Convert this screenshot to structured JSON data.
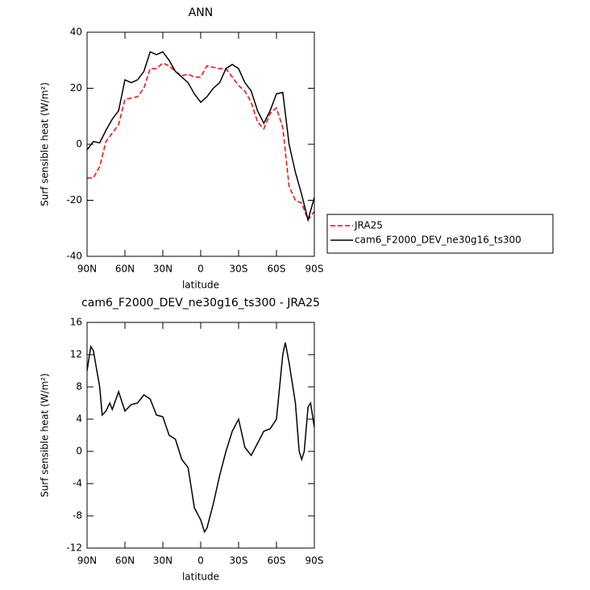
{
  "chart_data": [
    {
      "type": "line",
      "title": "ANN",
      "xlabel": "latitude",
      "ylabel": "Surf sensible heat (W/m²)",
      "x": [
        90,
        85,
        80,
        75,
        70,
        65,
        60,
        55,
        50,
        45,
        40,
        35,
        30,
        25,
        20,
        15,
        10,
        5,
        0,
        -5,
        -10,
        -15,
        -20,
        -25,
        -30,
        -35,
        -40,
        -45,
        -50,
        -55,
        -60,
        -65,
        -70,
        -75,
        -80,
        -85,
        -90
      ],
      "series": [
        {
          "name": "JRA25",
          "color": "#ff0000",
          "style": "dashed",
          "values": [
            -12,
            -12,
            -8,
            1,
            4,
            7,
            16,
            16.5,
            17,
            20,
            27,
            27,
            29,
            28,
            26,
            24.5,
            25,
            24,
            24,
            28,
            27.5,
            27,
            27,
            24,
            21,
            19,
            15,
            8,
            5.5,
            11,
            13,
            6,
            -15,
            -20,
            -21,
            -27,
            -24
          ]
        },
        {
          "name": "cam6_F2000_DEV_ne30g16_ts300",
          "color": "#000000",
          "style": "solid",
          "values": [
            -2,
            1,
            0.5,
            5,
            9,
            12,
            23,
            22,
            23,
            26,
            33,
            32,
            33,
            30,
            26,
            24,
            22,
            18,
            15,
            17,
            20,
            22,
            27,
            28.5,
            27,
            22,
            19,
            12,
            7.5,
            12,
            18,
            18.5,
            0,
            -10,
            -18,
            -27,
            -19
          ]
        }
      ],
      "xlim": [
        90,
        -90
      ],
      "xticks": [
        {
          "value": 90,
          "label": "90N"
        },
        {
          "value": 60,
          "label": "60N"
        },
        {
          "value": 30,
          "label": "30N"
        },
        0,
        {
          "value": -30,
          "label": "30S"
        },
        {
          "value": -60,
          "label": "60S"
        },
        {
          "value": -90,
          "label": "90S"
        }
      ],
      "ylim": [
        -40,
        40
      ],
      "yticks": [
        -40,
        -20,
        0,
        20,
        40
      ],
      "legend": "right"
    },
    {
      "type": "line",
      "title": "cam6_F2000_DEV_ne30g16_ts300 - JRA25",
      "xlabel": "latitude",
      "ylabel": "Surf sensible heat (W/m²)",
      "x": [
        90,
        87,
        85,
        80,
        78,
        75,
        72,
        70,
        65,
        60,
        55,
        50,
        45,
        40,
        35,
        30,
        25,
        20,
        15,
        10,
        5,
        0,
        -3,
        -5,
        -10,
        -15,
        -20,
        -25,
        -30,
        -35,
        -40,
        -45,
        -50,
        -55,
        -60,
        -65,
        -67,
        -70,
        -75,
        -78,
        -80,
        -82,
        -85,
        -87,
        -90
      ],
      "series": [
        {
          "name": "cam6_F2000_DEV_ne30g16_ts300 - JRA25",
          "color": "#000000",
          "style": "solid",
          "values": [
            10,
            13,
            12.5,
            8,
            4.5,
            5,
            6,
            5.2,
            7.4,
            5,
            5.8,
            6,
            7,
            6.5,
            4.5,
            4.3,
            2,
            1.5,
            -1,
            -2,
            -7,
            -8.5,
            -10,
            -9.5,
            -6.5,
            -3,
            0,
            2.5,
            4,
            0.5,
            -0.5,
            1,
            2.5,
            2.8,
            4,
            12,
            13.5,
            11,
            6,
            0,
            -1,
            0,
            5.5,
            6,
            3
          ]
        }
      ],
      "xlim": [
        90,
        -90
      ],
      "xticks": [
        {
          "value": 90,
          "label": "90N"
        },
        {
          "value": 60,
          "label": "60N"
        },
        {
          "value": 30,
          "label": "30N"
        },
        0,
        {
          "value": -30,
          "label": "30S"
        },
        {
          "value": -60,
          "label": "60S"
        },
        {
          "value": -90,
          "label": "90S"
        }
      ],
      "ylim": [
        -12,
        16
      ],
      "yticks": [
        -12,
        -8,
        -4,
        0,
        4,
        8,
        12,
        16
      ]
    }
  ]
}
